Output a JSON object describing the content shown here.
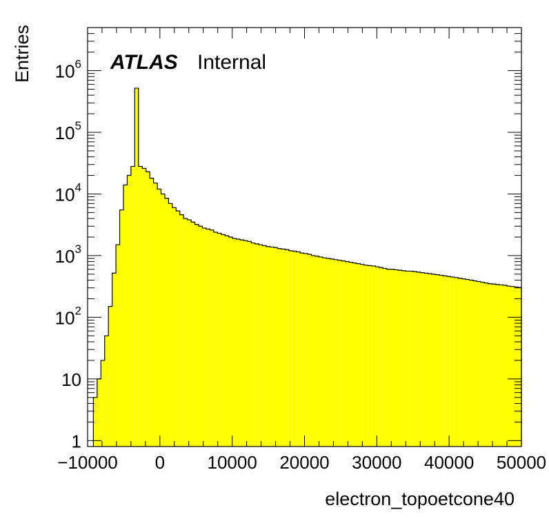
{
  "chart_data": {
    "type": "histogram",
    "title": "",
    "xlabel": "electron_topoetcone40",
    "ylabel": "Entries",
    "annotation": {
      "experiment": "ATLAS",
      "status": "Internal"
    },
    "xlim": [
      -10000,
      50000
    ],
    "ylim": [
      0.8,
      5000000
    ],
    "y_scale": "log",
    "x_ticks": [
      {
        "value": -10000,
        "label": "−10000"
      },
      {
        "value": 0,
        "label": "0"
      },
      {
        "value": 10000,
        "label": "10000"
      },
      {
        "value": 20000,
        "label": "20000"
      },
      {
        "value": 30000,
        "label": "30000"
      },
      {
        "value": 40000,
        "label": "40000"
      },
      {
        "value": 50000,
        "label": "50000"
      }
    ],
    "y_ticks": [
      {
        "value": 1,
        "base": "1",
        "exp": ""
      },
      {
        "value": 10,
        "base": "10",
        "exp": ""
      },
      {
        "value": 100,
        "base": "10",
        "exp": "2"
      },
      {
        "value": 1000,
        "base": "10",
        "exp": "3"
      },
      {
        "value": 10000,
        "base": "10",
        "exp": "4"
      },
      {
        "value": 100000,
        "base": "10",
        "exp": "5"
      },
      {
        "value": 1000000,
        "base": "10",
        "exp": "6"
      }
    ],
    "fill_color": "#ffff00",
    "line_color": "#000000",
    "bin_edges_start": -9200,
    "bin_width": 520,
    "counts": [
      5,
      10,
      20,
      50,
      150,
      520,
      1500,
      5500,
      14000,
      20000,
      28000,
      520000,
      28000,
      26000,
      23000,
      18000,
      15000,
      12000,
      10000,
      8500,
      7000,
      6000,
      5300,
      4600,
      4000,
      3800,
      3500,
      3200,
      3000,
      2800,
      2700,
      2600,
      2400,
      2300,
      2200,
      2100,
      2000,
      1900,
      1850,
      1800,
      1750,
      1700,
      1600,
      1550,
      1500,
      1450,
      1400,
      1380,
      1350,
      1300,
      1280,
      1250,
      1200,
      1180,
      1150,
      1100,
      1080,
      1050,
      1000,
      980,
      950,
      920,
      900,
      880,
      860,
      840,
      820,
      800,
      780,
      760,
      740,
      720,
      700,
      690,
      680,
      660,
      640,
      620,
      600,
      600,
      590,
      580,
      570,
      560,
      560,
      550,
      540,
      530,
      520,
      510,
      500,
      490,
      480,
      470,
      460,
      450,
      440,
      430,
      420,
      410,
      400,
      390,
      380,
      370,
      360,
      350,
      345,
      340,
      335,
      330,
      320,
      315,
      310,
      305,
      300
    ]
  }
}
